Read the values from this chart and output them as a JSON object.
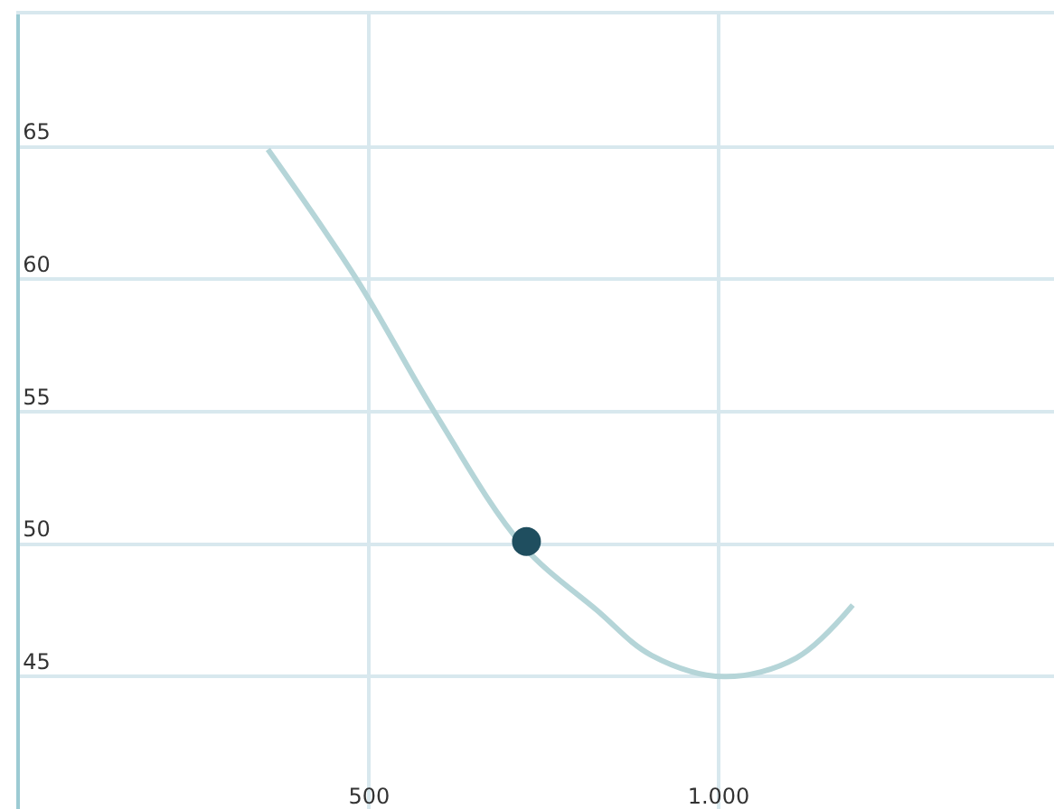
{
  "chart_data": {
    "type": "line",
    "xlim": [
      0,
      1480
    ],
    "ylim": [
      40,
      70
    ],
    "xticks": [
      500,
      {
        "value": 1000,
        "label": "1.000"
      }
    ],
    "yticks": [
      45,
      50,
      55,
      60,
      65
    ],
    "grid": true,
    "legend": false,
    "series": [
      {
        "color": "#b5d5d8",
        "marker": "none",
        "x": [
          355,
          482,
          593,
          718,
          826,
          904,
          1008,
          1111,
          1192
        ],
        "values": [
          64.9,
          60,
          55,
          50,
          47.5,
          45.8,
          45,
          45.7,
          47.7
        ]
      },
      {
        "type": "scatter",
        "color": "#1f4e5f",
        "marker": "circle",
        "x": [
          725
        ],
        "values": [
          50.1
        ]
      }
    ]
  }
}
